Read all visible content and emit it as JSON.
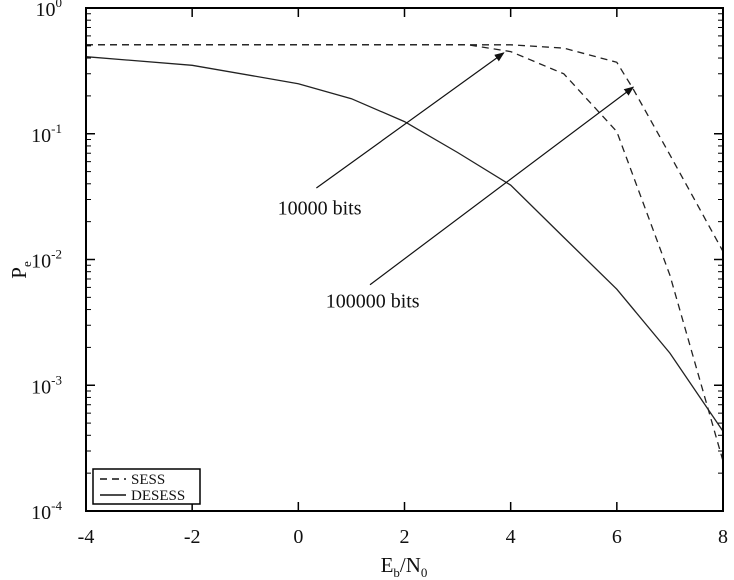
{
  "chart_data": {
    "type": "line",
    "xlabel": {
      "main": "E",
      "sub": "b",
      "sep": "/N",
      "sub2": "0"
    },
    "ylabel": {
      "main": "P",
      "sub": "e"
    },
    "xlim": [
      -4,
      8
    ],
    "ylim": [
      0.0001,
      1
    ],
    "yscale": "log",
    "grid": false,
    "x_ticks": [
      "-4",
      "-2",
      "0",
      "2",
      "4",
      "6",
      "8"
    ],
    "y_ticks": [
      {
        "base": "10",
        "exp": "0"
      },
      {
        "base": "10",
        "exp": "-1"
      },
      {
        "base": "10",
        "exp": "-2"
      },
      {
        "base": "10",
        "exp": "-3"
      },
      {
        "base": "10",
        "exp": "-4"
      }
    ],
    "legend": {
      "placement": "bottom-left",
      "entries": [
        {
          "label": "SESS",
          "style": "dashed"
        },
        {
          "label": "DESESS",
          "style": "solid"
        }
      ]
    },
    "series": [
      {
        "legend": "SESS",
        "style": "dashed",
        "x": [
          -4,
          -2,
          0,
          2,
          3.2,
          4,
          5,
          6,
          7,
          8
        ],
        "y": [
          0.51,
          0.51,
          0.51,
          0.51,
          0.51,
          0.45,
          0.3,
          0.104,
          0.0075,
          0.00025
        ]
      },
      {
        "legend": "SESS",
        "style": "dashed",
        "x": [
          -4,
          -2,
          0,
          2,
          4,
          5,
          6,
          6.3,
          7,
          8
        ],
        "y": [
          0.51,
          0.51,
          0.51,
          0.51,
          0.51,
          0.48,
          0.37,
          0.23,
          0.068,
          0.0116
        ]
      },
      {
        "legend": "DESESS",
        "style": "solid",
        "x": [
          -4,
          -2,
          0,
          1,
          2,
          3,
          4,
          5,
          6,
          7,
          8
        ],
        "y": [
          0.41,
          0.35,
          0.25,
          0.19,
          0.125,
          0.071,
          0.039,
          0.015,
          0.0058,
          0.0018,
          0.00043
        ]
      }
    ],
    "annotations": [
      {
        "text": "10000 bits",
        "text_at": [
          0.4,
          0.026
        ],
        "arrow_from": [
          0.34,
          0.037
        ],
        "arrow_to": [
          3.87,
          0.44
        ]
      },
      {
        "text": "100000 bits",
        "text_at": [
          1.4,
          0.0047
        ],
        "arrow_from": [
          1.35,
          0.0063
        ],
        "arrow_to": [
          6.31,
          0.235
        ]
      }
    ],
    "colors": {
      "line": "#222222",
      "axis": "#000000"
    }
  }
}
